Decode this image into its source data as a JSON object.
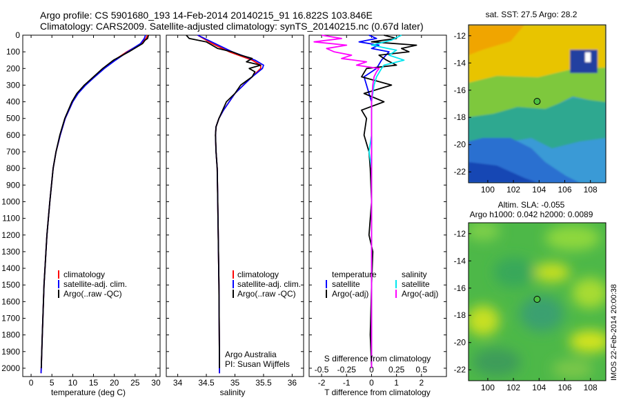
{
  "header": {
    "line1": "Argo profile: CS 5901680_193 14-Feb-2014 20140215_91 16.822S 103.846E",
    "line2": "Climatology: CARS2009. Satellite-adjusted climatology: synTS_20140215.nc (0.67d later)"
  },
  "sidebar_stamp": "IMOS 22-Feb-2014 20:00:38",
  "colors": {
    "climatology": "#ff0000",
    "satellite": "#0000ff",
    "argo": "#000000",
    "sat_salinity": "#00e5ee",
    "argo_salinity": "#ff00ff"
  },
  "chart_data": [
    {
      "type": "line",
      "name": "temperature-profile",
      "xlabel": "temperature (deg C)",
      "ylabel": "",
      "xlim": [
        -2,
        31
      ],
      "ylim": [
        2050,
        0
      ],
      "xticks": [
        "0",
        "5",
        "10",
        "15",
        "20",
        "25",
        "30"
      ],
      "xtick_values": [
        0,
        5,
        10,
        15,
        20,
        25,
        30
      ],
      "yticks": [
        "0",
        "100",
        "200",
        "300",
        "400",
        "500",
        "600",
        "700",
        "800",
        "900",
        "1000",
        "1100",
        "1200",
        "1300",
        "1400",
        "1500",
        "1600",
        "1700",
        "1800",
        "1900",
        "2000"
      ],
      "ytick_values": [
        0,
        100,
        200,
        300,
        400,
        500,
        600,
        700,
        800,
        900,
        1000,
        1100,
        1200,
        1300,
        1400,
        1500,
        1600,
        1700,
        1800,
        1900,
        2000
      ],
      "legend": [
        "climatology",
        "satellite-adj. clim.",
        "Argo(..raw -QC)"
      ],
      "series": [
        {
          "name": "climatology",
          "color": "#ff0000",
          "depth": [
            0,
            20,
            50,
            100,
            150,
            200,
            250,
            300,
            350,
            400,
            500,
            600,
            700,
            800,
            1000,
            1200,
            1500,
            1800,
            2000,
            2030
          ],
          "values": [
            28.0,
            27.6,
            26.5,
            23.0,
            20.0,
            17.5,
            15.2,
            13.0,
            11.2,
            10.0,
            8.2,
            7.0,
            6.0,
            5.3,
            4.5,
            3.8,
            3.1,
            2.7,
            2.45,
            2.4
          ]
        },
        {
          "name": "satellite-adj. clim.",
          "color": "#0000ff",
          "depth": [
            0,
            20,
            50,
            100,
            150,
            200,
            250,
            300,
            350,
            400,
            500,
            600,
            700,
            800,
            1000,
            1200,
            1500,
            1800,
            2000,
            2030
          ],
          "values": [
            27.5,
            27.2,
            26.3,
            23.2,
            20.3,
            17.6,
            15.3,
            13.1,
            11.3,
            10.0,
            8.2,
            7.0,
            6.0,
            5.3,
            4.5,
            3.8,
            3.1,
            2.7,
            2.45,
            2.4
          ]
        },
        {
          "name": "Argo(..raw -QC)",
          "color": "#000000",
          "depth": [
            0,
            20,
            30,
            50,
            100,
            150,
            200,
            250,
            300,
            350,
            400,
            500,
            600,
            700,
            800,
            1000,
            1200,
            1500,
            1800,
            2000
          ],
          "values": [
            28.2,
            28.0,
            27.4,
            26.8,
            23.5,
            19.8,
            17.2,
            15.0,
            12.8,
            11.0,
            9.8,
            8.1,
            6.9,
            6.0,
            5.3,
            4.5,
            3.8,
            3.1,
            2.7,
            2.45
          ]
        }
      ]
    },
    {
      "type": "line",
      "name": "salinity-profile",
      "xlabel": "salinity",
      "ylabel": "",
      "xlim": [
        33.8,
        36.2
      ],
      "ylim": [
        2050,
        0
      ],
      "xticks": [
        "34",
        "34.5",
        "35",
        "35.5",
        "36"
      ],
      "xtick_values": [
        34,
        34.5,
        35,
        35.5,
        36
      ],
      "legend": [
        "climatology",
        "satellite-adj. clim.",
        "Argo(..raw -QC)"
      ],
      "annotations": [
        "Argo Australia",
        "PI: Susan Wijffels"
      ],
      "series": [
        {
          "name": "climatology",
          "color": "#ff0000",
          "depth": [
            0,
            50,
            100,
            150,
            180,
            200,
            250,
            300,
            350,
            400,
            450,
            500,
            550,
            600,
            700,
            800,
            1000,
            1500,
            2000,
            2030
          ],
          "values": [
            34.35,
            34.6,
            34.9,
            35.3,
            35.45,
            35.45,
            35.3,
            35.15,
            35.0,
            34.9,
            34.8,
            34.72,
            34.67,
            34.66,
            34.67,
            34.69,
            34.7,
            34.72,
            34.73,
            34.73
          ]
        },
        {
          "name": "satellite-adj. clim.",
          "color": "#0000ff",
          "depth": [
            0,
            50,
            100,
            150,
            180,
            200,
            250,
            300,
            350,
            400,
            450,
            500,
            550,
            600,
            700,
            800,
            1000,
            1500,
            2000,
            2030
          ],
          "values": [
            34.35,
            34.65,
            34.95,
            35.35,
            35.5,
            35.48,
            35.3,
            35.15,
            35.0,
            34.9,
            34.8,
            34.72,
            34.67,
            34.66,
            34.67,
            34.69,
            34.7,
            34.72,
            34.73,
            34.73
          ]
        },
        {
          "name": "Argo(..raw -QC)",
          "color": "#000000",
          "depth": [
            0,
            20,
            40,
            60,
            80,
            100,
            120,
            140,
            160,
            180,
            200,
            220,
            250,
            300,
            350,
            400,
            500,
            550,
            600,
            700,
            800,
            1000,
            1500,
            2000
          ],
          "values": [
            34.15,
            34.2,
            34.5,
            34.6,
            34.7,
            34.95,
            35.1,
            35.3,
            35.2,
            35.45,
            35.25,
            35.35,
            35.3,
            35.1,
            35.0,
            34.85,
            34.72,
            34.67,
            34.66,
            34.67,
            34.69,
            34.7,
            34.72,
            34.73
          ]
        }
      ]
    },
    {
      "type": "line",
      "name": "difference-profile",
      "xlabel": "T difference from climatology",
      "title_bottom": "S difference from climatology",
      "xlim": [
        -2.5,
        3.0
      ],
      "ylim": [
        2050,
        0
      ],
      "xticks": [
        "-2",
        "-1",
        "0",
        "1",
        "2"
      ],
      "xtick_values": [
        -2,
        -1,
        0,
        1,
        2
      ],
      "top_xticks": [
        "-0.5",
        "-0.25",
        "0",
        "0.25",
        "0.5"
      ],
      "top_xtick_values": [
        -2,
        -1,
        0,
        1,
        2
      ],
      "legend_headers": [
        "temperature",
        "salinity"
      ],
      "legend": [
        "satellite",
        "Argo(-adj)",
        "satellite",
        "Argo(-adj)"
      ],
      "series": [
        {
          "name": "temperature satellite",
          "color": "#0000ff",
          "depth": [
            0,
            20,
            40,
            60,
            80,
            100,
            150,
            200,
            250,
            300,
            350,
            400,
            500,
            2000
          ],
          "values": [
            -0.1,
            0.2,
            -0.5,
            0.3,
            0.0,
            0.7,
            0.4,
            0.2,
            -0.3,
            -0.2,
            -0.1,
            0.0,
            0.0,
            0.0
          ]
        },
        {
          "name": "temperature Argo(-adj)",
          "color": "#000000",
          "depth": [
            0,
            20,
            40,
            60,
            80,
            100,
            120,
            150,
            180,
            200,
            250,
            300,
            350,
            400,
            450,
            500,
            600,
            700,
            800,
            1000,
            1200,
            1300,
            1500,
            1800,
            2000
          ],
          "values": [
            0.5,
            1.0,
            0.0,
            1.8,
            1.2,
            1.5,
            0.3,
            0.6,
            1.0,
            -0.2,
            -0.4,
            0.8,
            -0.3,
            0.5,
            -0.4,
            -0.2,
            -0.3,
            -0.1,
            -0.05,
            0.0,
            -0.1,
            0.05,
            0.0,
            -0.05,
            0.0
          ]
        },
        {
          "name": "salinity satellite",
          "color": "#00e5ee",
          "depth": [
            0,
            30,
            60,
            90,
            120,
            150,
            180,
            200,
            250,
            300,
            400,
            500,
            600,
            700,
            800,
            1000,
            1500,
            2000
          ],
          "values": [
            1.2,
            0.8,
            0.0,
            1.0,
            0.7,
            1.3,
            0.5,
            0.4,
            0.2,
            0.1,
            0.0,
            0.0,
            0.0,
            -0.1,
            0.0,
            0.0,
            0.0,
            0.0
          ]
        },
        {
          "name": "salinity Argo(-adj)",
          "color": "#ff00ff",
          "depth": [
            0,
            20,
            40,
            60,
            80,
            100,
            120,
            140,
            160,
            180,
            200,
            220,
            250,
            300,
            400,
            500,
            700,
            1000,
            1500,
            2000
          ],
          "values": [
            -2.0,
            -1.2,
            -2.3,
            -1.0,
            -1.8,
            -1.5,
            -0.8,
            -1.2,
            -0.2,
            -0.6,
            0.3,
            0.2,
            0.1,
            0.05,
            0.0,
            0.0,
            0.0,
            0.0,
            0.0,
            0.0
          ]
        }
      ]
    },
    {
      "type": "heatmap",
      "name": "sst-map",
      "title": "sat. SST: 27.5 Argo: 28.2",
      "xlim": [
        98.5,
        109.2
      ],
      "ylim": [
        -22.8,
        -11.2
      ],
      "xticks": [
        "100",
        "102",
        "104",
        "106",
        "108"
      ],
      "xtick_values": [
        100,
        102,
        104,
        106,
        108
      ],
      "yticks": [
        "-12",
        "-14",
        "-16",
        "-18",
        "-20",
        "-22"
      ],
      "ytick_values": [
        -12,
        -14,
        -16,
        -18,
        -20,
        -22
      ],
      "marker": {
        "lon": 103.846,
        "lat": -16.822
      }
    },
    {
      "type": "heatmap",
      "name": "sla-map",
      "title": "Altim. SLA: -0.055",
      "subtitle": "Argo h1000: 0.042 h2000: 0.0089",
      "xlim": [
        98.5,
        109.2
      ],
      "ylim": [
        -22.8,
        -11.2
      ],
      "xticks": [
        "100",
        "102",
        "104",
        "106",
        "108"
      ],
      "xtick_values": [
        100,
        102,
        104,
        106,
        108
      ],
      "yticks": [
        "-12",
        "-14",
        "-16",
        "-18",
        "-20",
        "-22"
      ],
      "ytick_values": [
        -12,
        -14,
        -16,
        -18,
        -20,
        -22
      ],
      "marker": {
        "lon": 103.846,
        "lat": -16.822
      }
    }
  ]
}
